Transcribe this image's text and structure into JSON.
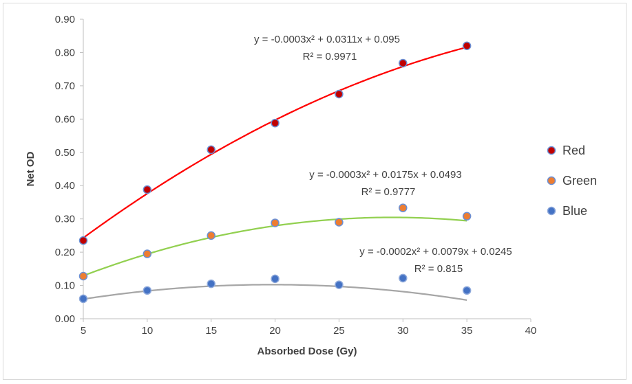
{
  "chart_data": {
    "type": "scatter",
    "title": "",
    "xlabel": "Absorbed Dose (Gy)",
    "ylabel": "Net OD",
    "xlim": [
      5,
      40
    ],
    "ylim": [
      0,
      0.9
    ],
    "x_ticks": [
      "5",
      "10",
      "15",
      "20",
      "25",
      "30",
      "35",
      "40"
    ],
    "y_ticks": [
      "0.00",
      "0.10",
      "0.20",
      "0.30",
      "0.40",
      "0.50",
      "0.60",
      "0.70",
      "0.80",
      "0.90"
    ],
    "grid": false,
    "legend_position": "right",
    "x": [
      5,
      10,
      15,
      20,
      25,
      30,
      35
    ],
    "series": [
      {
        "name": "Red",
        "marker_color": "#c00000",
        "line_color": "#ff0000",
        "values": [
          0.235,
          0.388,
          0.508,
          0.588,
          0.675,
          0.768,
          0.82
        ],
        "trendline": {
          "a": -0.0003,
          "b": 0.0311,
          "c": 0.095
        },
        "equation": "y = -0.0003x² + 0.0311x + 0.095",
        "r2": "R² = 0.9971"
      },
      {
        "name": "Green",
        "marker_color": "#ed7d31",
        "line_color": "#92d050",
        "values": [
          0.128,
          0.195,
          0.25,
          0.288,
          0.29,
          0.333,
          0.308
        ],
        "trendline": {
          "a": -0.0003,
          "b": 0.0175,
          "c": 0.0493
        },
        "equation": "y = -0.0003x² + 0.0175x + 0.0493",
        "r2": "R² = 0.9777"
      },
      {
        "name": "Blue",
        "marker_color": "#4472c4",
        "line_color": "#a6a6a6",
        "values": [
          0.06,
          0.085,
          0.105,
          0.12,
          0.102,
          0.122,
          0.085
        ],
        "trendline": {
          "a": -0.0002,
          "b": 0.0079,
          "c": 0.0245
        },
        "equation": "y = -0.0002x² + 0.0079x + 0.0245",
        "r2": "R² = 0.815"
      }
    ]
  }
}
